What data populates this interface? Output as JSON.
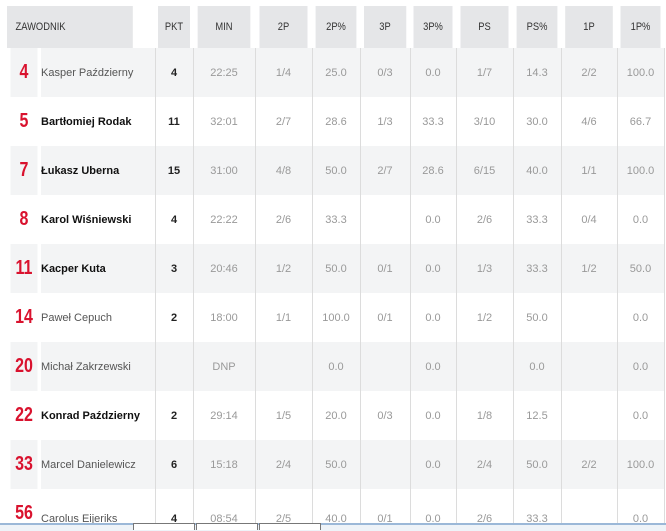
{
  "columns": [
    "ZAWODNIK",
    "PKT",
    "MIN",
    "2P",
    "2P%",
    "3P",
    "3P%",
    "PS",
    "PS%",
    "1P",
    "1P%"
  ],
  "rows": [
    {
      "num": "4",
      "name": "Kasper Październy",
      "bold": false,
      "pkt": "4",
      "min": "22:25",
      "p2": "1/4",
      "p2pct": "25.0",
      "p3": "0/3",
      "p3pct": "0.0",
      "ps": "1/7",
      "pspct": "14.3",
      "p1": "2/2",
      "p1pct": "100.0"
    },
    {
      "num": "5",
      "name": "Bartłomiej Rodak",
      "bold": true,
      "pkt": "11",
      "min": "32:01",
      "p2": "2/7",
      "p2pct": "28.6",
      "p3": "1/3",
      "p3pct": "33.3",
      "ps": "3/10",
      "pspct": "30.0",
      "p1": "4/6",
      "p1pct": "66.7"
    },
    {
      "num": "7",
      "name": "Łukasz Uberna",
      "bold": true,
      "pkt": "15",
      "min": "31:00",
      "p2": "4/8",
      "p2pct": "50.0",
      "p3": "2/7",
      "p3pct": "28.6",
      "ps": "6/15",
      "pspct": "40.0",
      "p1": "1/1",
      "p1pct": "100.0"
    },
    {
      "num": "8",
      "name": "Karol Wiśniewski",
      "bold": true,
      "pkt": "4",
      "min": "22:22",
      "p2": "2/6",
      "p2pct": "33.3",
      "p3": "",
      "p3pct": "0.0",
      "ps": "2/6",
      "pspct": "33.3",
      "p1": "0/4",
      "p1pct": "0.0"
    },
    {
      "num": "11",
      "name": "Kacper Kuta",
      "bold": true,
      "pkt": "3",
      "min": "20:46",
      "p2": "1/2",
      "p2pct": "50.0",
      "p3": "0/1",
      "p3pct": "0.0",
      "ps": "1/3",
      "pspct": "33.3",
      "p1": "1/2",
      "p1pct": "50.0"
    },
    {
      "num": "14",
      "name": "Paweł Cepuch",
      "bold": false,
      "pkt": "2",
      "min": "18:00",
      "p2": "1/1",
      "p2pct": "100.0",
      "p3": "0/1",
      "p3pct": "0.0",
      "ps": "1/2",
      "pspct": "50.0",
      "p1": "",
      "p1pct": "0.0"
    },
    {
      "num": "20",
      "name": "Michał Zakrzewski",
      "bold": false,
      "pkt": "",
      "min": "DNP",
      "p2": "",
      "p2pct": "0.0",
      "p3": "",
      "p3pct": "0.0",
      "ps": "",
      "pspct": "0.0",
      "p1": "",
      "p1pct": "0.0"
    },
    {
      "num": "22",
      "name": "Konrad Październy",
      "bold": true,
      "pkt": "2",
      "min": "29:14",
      "p2": "1/5",
      "p2pct": "20.0",
      "p3": "0/3",
      "p3pct": "0.0",
      "ps": "1/8",
      "pspct": "12.5",
      "p1": "",
      "p1pct": "0.0"
    },
    {
      "num": "33",
      "name": "Marcel Danielewicz",
      "bold": false,
      "pkt": "6",
      "min": "15:18",
      "p2": "2/4",
      "p2pct": "50.0",
      "p3": "",
      "p3pct": "0.0",
      "ps": "2/4",
      "pspct": "50.0",
      "p1": "2/2",
      "p1pct": "100.0"
    },
    {
      "num": "56",
      "name": "Carolus Eijeriks",
      "bold": false,
      "pkt": "4",
      "min": "08:54",
      "p2": "2/5",
      "p2pct": "40.0",
      "p3": "0/1",
      "p3pct": "0.0",
      "ps": "2/6",
      "pspct": "33.3",
      "p1": "",
      "p1pct": "0.0"
    }
  ],
  "colors": {
    "header_bg": "#e5e6e8",
    "row_alt_bg": "#f3f4f5",
    "number_red": "#d9122e"
  }
}
